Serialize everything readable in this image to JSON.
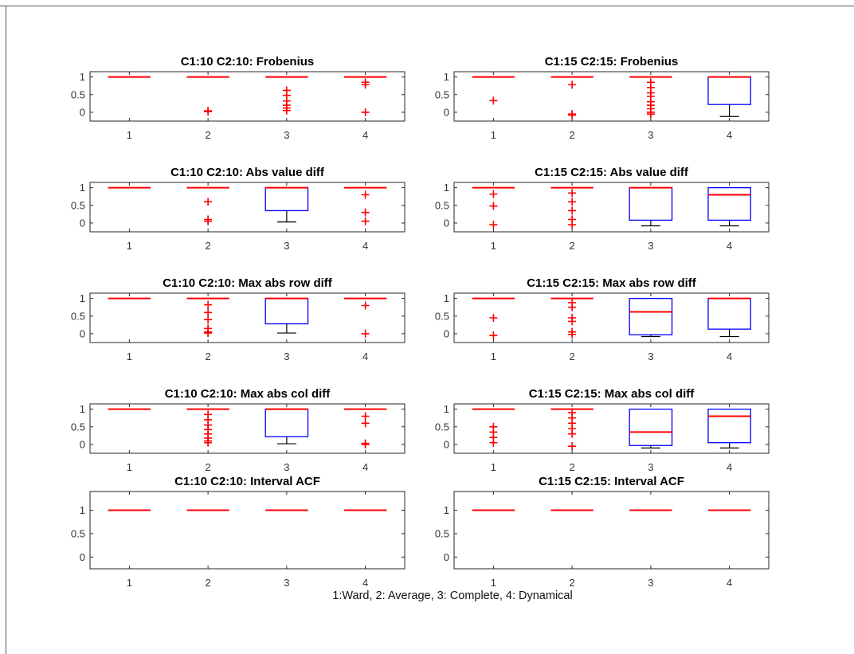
{
  "caption": "1:Ward, 2: Average, 3: Complete, 4: Dynamical",
  "colors": {
    "box": "#0000ff",
    "median": "#ff0000",
    "whisker": "#000000",
    "outlier": "#ff0000",
    "axis": "#262626"
  },
  "chart_data": [
    {
      "type": "box",
      "title": "C1:10 C2:10: Frobenius",
      "categories": [
        "1",
        "2",
        "3",
        "4"
      ],
      "ylim": [
        -0.25,
        1.15
      ],
      "yticks": [
        0,
        0.5,
        1
      ],
      "ytick_labels": [
        "0",
        "0.5",
        "1"
      ],
      "boxes": [
        {
          "q1": 1,
          "median": 1,
          "q3": 1,
          "whisker_low": 1,
          "whisker_high": 1,
          "outliers": []
        },
        {
          "q1": 1,
          "median": 1,
          "q3": 1,
          "whisker_low": 1,
          "whisker_high": 1,
          "outliers": [
            0.02,
            0.04
          ]
        },
        {
          "q1": 1,
          "median": 1,
          "q3": 1,
          "whisker_low": 1,
          "whisker_high": 1,
          "outliers": [
            0.62,
            0.48,
            0.32,
            0.2,
            0.12,
            0.05
          ]
        },
        {
          "q1": 1,
          "median": 1,
          "q3": 1,
          "whisker_low": 1,
          "whisker_high": 1,
          "outliers": [
            0.85,
            0.78,
            0.0
          ]
        }
      ]
    },
    {
      "type": "box",
      "title": "C1:15 C2:15: Frobenius",
      "categories": [
        "1",
        "2",
        "3",
        "4"
      ],
      "ylim": [
        -0.25,
        1.15
      ],
      "yticks": [
        0,
        0.5,
        1
      ],
      "ytick_labels": [
        "0",
        "0.5",
        "1"
      ],
      "boxes": [
        {
          "q1": 1,
          "median": 1,
          "q3": 1,
          "whisker_low": 1,
          "whisker_high": 1,
          "outliers": [
            0.33
          ]
        },
        {
          "q1": 1,
          "median": 1,
          "q3": 1,
          "whisker_low": 1,
          "whisker_high": 1,
          "outliers": [
            0.78,
            -0.05,
            -0.08
          ]
        },
        {
          "q1": 1,
          "median": 1,
          "q3": 1,
          "whisker_low": 1,
          "whisker_high": 1,
          "outliers": [
            0.85,
            0.7,
            0.55,
            0.45,
            0.3,
            0.2,
            0.1,
            0.0,
            -0.05
          ]
        },
        {
          "q1": 0.22,
          "median": 1,
          "q3": 1,
          "whisker_low": -0.12,
          "whisker_high": 1,
          "outliers": []
        }
      ]
    },
    {
      "type": "box",
      "title": "C1:10 C2:10: Abs value diff",
      "categories": [
        "1",
        "2",
        "3",
        "4"
      ],
      "ylim": [
        -0.25,
        1.15
      ],
      "yticks": [
        0,
        0.5,
        1
      ],
      "ytick_labels": [
        "0",
        "0.5",
        "1"
      ],
      "boxes": [
        {
          "q1": 1,
          "median": 1,
          "q3": 1,
          "whisker_low": 1,
          "whisker_high": 1,
          "outliers": []
        },
        {
          "q1": 1,
          "median": 1,
          "q3": 1,
          "whisker_low": 1,
          "whisker_high": 1,
          "outliers": [
            0.6,
            0.1,
            0.05
          ]
        },
        {
          "q1": 0.35,
          "median": 1,
          "q3": 1,
          "whisker_low": 0.03,
          "whisker_high": 1,
          "outliers": []
        },
        {
          "q1": 1,
          "median": 1,
          "q3": 1,
          "whisker_low": 1,
          "whisker_high": 1,
          "outliers": [
            0.8,
            0.3,
            0.05
          ]
        }
      ]
    },
    {
      "type": "box",
      "title": "C1:15 C2:15: Abs value diff",
      "categories": [
        "1",
        "2",
        "3",
        "4"
      ],
      "ylim": [
        -0.25,
        1.15
      ],
      "yticks": [
        0,
        0.5,
        1
      ],
      "ytick_labels": [
        "0",
        "0.5",
        "1"
      ],
      "boxes": [
        {
          "q1": 1,
          "median": 1,
          "q3": 1,
          "whisker_low": 1,
          "whisker_high": 1,
          "outliers": [
            0.82,
            0.48,
            -0.05
          ]
        },
        {
          "q1": 1,
          "median": 1,
          "q3": 1,
          "whisker_low": 1,
          "whisker_high": 1,
          "outliers": [
            0.85,
            0.6,
            0.35,
            0.1,
            -0.05
          ]
        },
        {
          "q1": 0.08,
          "median": 1,
          "q3": 1,
          "whisker_low": -0.08,
          "whisker_high": 1,
          "outliers": []
        },
        {
          "q1": 0.08,
          "median": 0.8,
          "q3": 1,
          "whisker_low": -0.08,
          "whisker_high": 1,
          "outliers": []
        }
      ]
    },
    {
      "type": "box",
      "title": "C1:10 C2:10: Max abs row diff",
      "categories": [
        "1",
        "2",
        "3",
        "4"
      ],
      "ylim": [
        -0.25,
        1.15
      ],
      "yticks": [
        0,
        0.5,
        1
      ],
      "ytick_labels": [
        "0",
        "0.5",
        "1"
      ],
      "boxes": [
        {
          "q1": 1,
          "median": 1,
          "q3": 1,
          "whisker_low": 1,
          "whisker_high": 1,
          "outliers": []
        },
        {
          "q1": 1,
          "median": 1,
          "q3": 1,
          "whisker_low": 1,
          "whisker_high": 1,
          "outliers": [
            0.82,
            0.6,
            0.4,
            0.15,
            0.05,
            0.02
          ]
        },
        {
          "q1": 0.28,
          "median": 1,
          "q3": 1,
          "whisker_low": 0.02,
          "whisker_high": 1,
          "outliers": []
        },
        {
          "q1": 1,
          "median": 1,
          "q3": 1,
          "whisker_low": 1,
          "whisker_high": 1,
          "outliers": [
            0.8,
            0.0
          ]
        }
      ]
    },
    {
      "type": "box",
      "title": "C1:15 C2:15: Max abs row diff",
      "categories": [
        "1",
        "2",
        "3",
        "4"
      ],
      "ylim": [
        -0.25,
        1.15
      ],
      "yticks": [
        0,
        0.5,
        1
      ],
      "ytick_labels": [
        "0",
        "0.5",
        "1"
      ],
      "boxes": [
        {
          "q1": 1,
          "median": 1,
          "q3": 1,
          "whisker_low": 1,
          "whisker_high": 1,
          "outliers": [
            0.45,
            -0.05
          ]
        },
        {
          "q1": 1,
          "median": 1,
          "q3": 1,
          "whisker_low": 1,
          "whisker_high": 1,
          "outliers": [
            0.88,
            0.75,
            0.45,
            0.35,
            0.05,
            -0.02
          ]
        },
        {
          "q1": -0.03,
          "median": 0.62,
          "q3": 1,
          "whisker_low": -0.08,
          "whisker_high": 1,
          "outliers": []
        },
        {
          "q1": 0.13,
          "median": 1,
          "q3": 1,
          "whisker_low": -0.08,
          "whisker_high": 1,
          "outliers": []
        }
      ]
    },
    {
      "type": "box",
      "title": "C1:10 C2:10: Max abs col diff",
      "categories": [
        "1",
        "2",
        "3",
        "4"
      ],
      "ylim": [
        -0.25,
        1.15
      ],
      "yticks": [
        0,
        0.5,
        1
      ],
      "ytick_labels": [
        "0",
        "0.5",
        "1"
      ],
      "boxes": [
        {
          "q1": 1,
          "median": 1,
          "q3": 1,
          "whisker_low": 1,
          "whisker_high": 1,
          "outliers": []
        },
        {
          "q1": 1,
          "median": 1,
          "q3": 1,
          "whisker_low": 1,
          "whisker_high": 1,
          "outliers": [
            0.85,
            0.7,
            0.55,
            0.42,
            0.3,
            0.18,
            0.1,
            0.05
          ]
        },
        {
          "q1": 0.22,
          "median": 1,
          "q3": 1,
          "whisker_low": 0.02,
          "whisker_high": 1,
          "outliers": []
        },
        {
          "q1": 1,
          "median": 1,
          "q3": 1,
          "whisker_low": 1,
          "whisker_high": 1,
          "outliers": [
            0.8,
            0.6,
            0.03,
            0.0
          ]
        }
      ]
    },
    {
      "type": "box",
      "title": "C1:15 C2:15: Max abs col diff",
      "categories": [
        "1",
        "2",
        "3",
        "4"
      ],
      "ylim": [
        -0.25,
        1.15
      ],
      "yticks": [
        0,
        0.5,
        1
      ],
      "ytick_labels": [
        "0",
        "0.5",
        "1"
      ],
      "boxes": [
        {
          "q1": 1,
          "median": 1,
          "q3": 1,
          "whisker_low": 1,
          "whisker_high": 1,
          "outliers": [
            0.5,
            0.35,
            0.2,
            0.05
          ]
        },
        {
          "q1": 1,
          "median": 1,
          "q3": 1,
          "whisker_low": 1,
          "whisker_high": 1,
          "outliers": [
            0.9,
            0.75,
            0.6,
            0.45,
            0.3,
            -0.05
          ]
        },
        {
          "q1": -0.03,
          "median": 0.35,
          "q3": 1,
          "whisker_low": -0.1,
          "whisker_high": 1,
          "outliers": []
        },
        {
          "q1": 0.05,
          "median": 0.8,
          "q3": 1,
          "whisker_low": -0.1,
          "whisker_high": 1,
          "outliers": []
        }
      ]
    },
    {
      "type": "box",
      "title": "C1:10 C2:10: Interval ACF",
      "categories": [
        "1",
        "2",
        "3",
        "4"
      ],
      "ylim": [
        -0.25,
        1.4
      ],
      "yticks": [
        0,
        0.5,
        1
      ],
      "ytick_labels": [
        "0",
        "0.5",
        "1"
      ],
      "boxes": [
        {
          "q1": 1,
          "median": 1,
          "q3": 1,
          "whisker_low": 1,
          "whisker_high": 1,
          "outliers": []
        },
        {
          "q1": 1,
          "median": 1,
          "q3": 1,
          "whisker_low": 1,
          "whisker_high": 1,
          "outliers": []
        },
        {
          "q1": 1,
          "median": 1,
          "q3": 1,
          "whisker_low": 1,
          "whisker_high": 1,
          "outliers": []
        },
        {
          "q1": 1,
          "median": 1,
          "q3": 1,
          "whisker_low": 1,
          "whisker_high": 1,
          "outliers": []
        }
      ]
    },
    {
      "type": "box",
      "title": "C1:15 C2:15: Interval ACF",
      "categories": [
        "1",
        "2",
        "3",
        "4"
      ],
      "ylim": [
        -0.25,
        1.4
      ],
      "yticks": [
        0,
        0.5,
        1
      ],
      "ytick_labels": [
        "0",
        "0.5",
        "1"
      ],
      "boxes": [
        {
          "q1": 1,
          "median": 1,
          "q3": 1,
          "whisker_low": 1,
          "whisker_high": 1,
          "outliers": []
        },
        {
          "q1": 1,
          "median": 1,
          "q3": 1,
          "whisker_low": 1,
          "whisker_high": 1,
          "outliers": []
        },
        {
          "q1": 1,
          "median": 1,
          "q3": 1,
          "whisker_low": 1,
          "whisker_high": 1,
          "outliers": []
        },
        {
          "q1": 1,
          "median": 1,
          "q3": 1,
          "whisker_low": 1,
          "whisker_high": 1,
          "outliers": []
        }
      ]
    }
  ]
}
